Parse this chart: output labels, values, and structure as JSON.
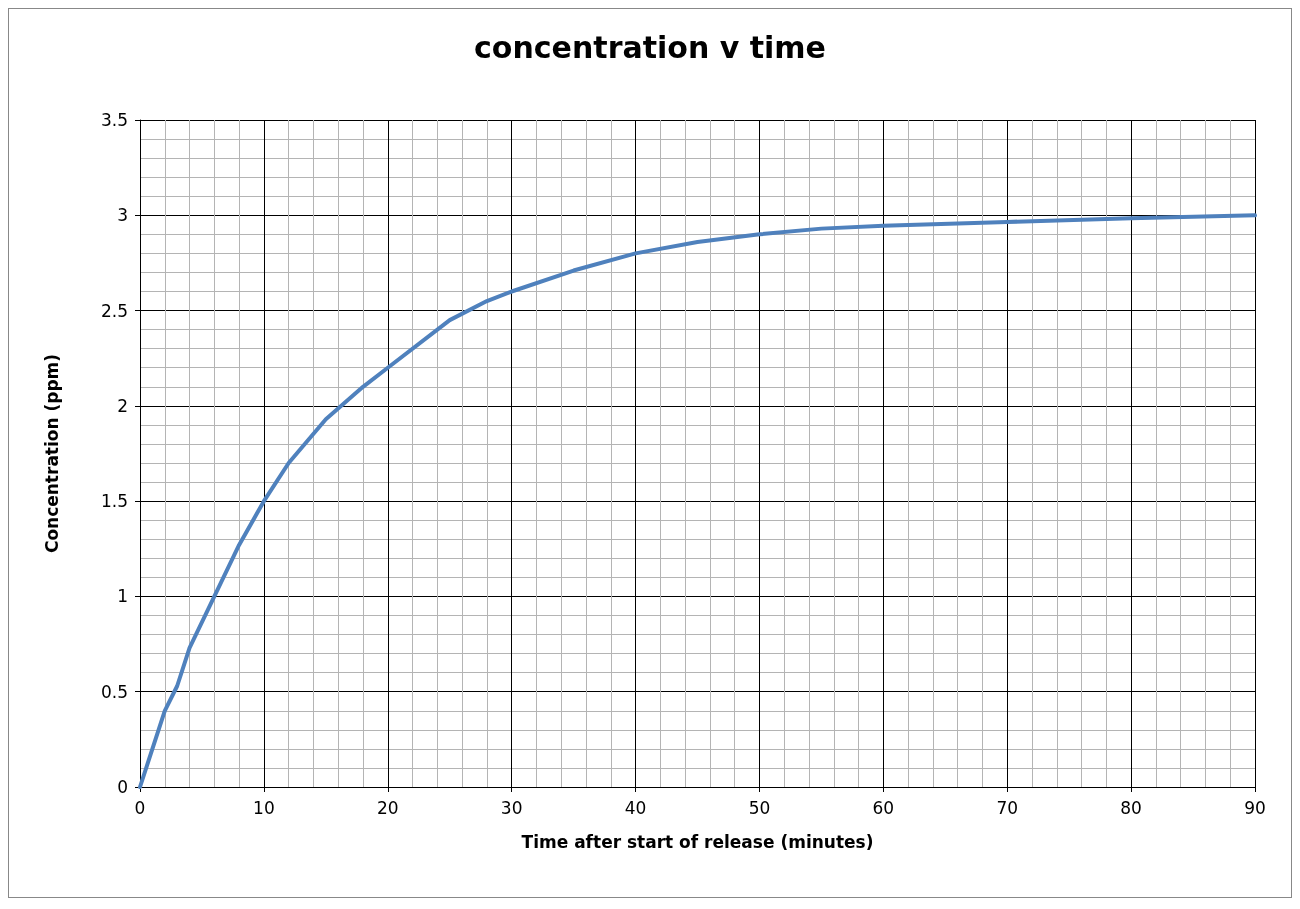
{
  "chart_data": {
    "type": "line",
    "title": "concentration v time",
    "xlabel": "Time after start of release (minutes)",
    "ylabel": "Concentration (ppm)",
    "x": [
      0,
      2,
      3,
      4,
      6,
      8,
      10,
      12,
      15,
      18,
      20,
      25,
      28,
      30,
      35,
      40,
      45,
      50,
      55,
      60,
      70,
      80,
      90
    ],
    "series": [
      {
        "color": "#4f81bd",
        "values": [
          0,
          0.4,
          0.53,
          0.73,
          1.0,
          1.27,
          1.5,
          1.7,
          1.93,
          2.1,
          2.2,
          2.45,
          2.55,
          2.6,
          2.71,
          2.8,
          2.86,
          2.9,
          2.93,
          2.945,
          2.965,
          2.985,
          3.0
        ]
      }
    ],
    "xlim": [
      0,
      90
    ],
    "xticks": [
      0,
      10,
      20,
      30,
      40,
      50,
      60,
      70,
      80,
      90
    ],
    "ylim": [
      0,
      3.5
    ],
    "yticks": [
      0,
      0.5,
      1,
      1.5,
      2,
      2.5,
      3,
      3.5
    ],
    "grid": true,
    "marker": "none",
    "line_style": "solid"
  }
}
